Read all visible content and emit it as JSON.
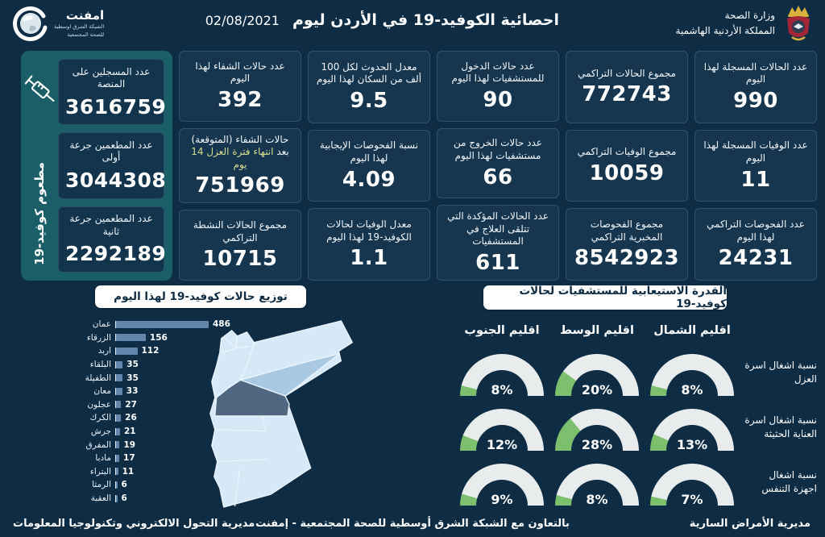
{
  "header": {
    "title": "احصائية الكوفيد-19 في الأردن ليوم",
    "date": "02/08/2021",
    "ministry": {
      "line1": "وزارة الصحة",
      "line2": "المملكة الأردنية الهاشمية"
    },
    "emphnet": {
      "name": "امفنت",
      "sub1": "الشبكة الشرق اوسطية",
      "sub2": "للصحة المجتمعية"
    }
  },
  "cards": {
    "registered_today": {
      "label": "عدد الحالات المسجلة لهذا اليوم",
      "value": "990"
    },
    "deaths_today": {
      "label": "عدد الوفيات المسجلة لهذا اليوم",
      "value": "11"
    },
    "tests_today": {
      "label": "عدد الفحوصات التراكمي لهذا اليوم",
      "value": "24231"
    },
    "total_cases": {
      "label": "مجموع الحالات التراكمي",
      "value": "772743"
    },
    "total_deaths": {
      "label": "مجموع الوفيات التراكمي",
      "value": "10059"
    },
    "total_tests": {
      "label": "مجموع الفحوصات المخبرية التراكمي",
      "value": "8542923"
    },
    "admissions_today": {
      "label": "عدد حالات الدخول للمستشفيات لهذا اليوم",
      "value": "90"
    },
    "discharges_today": {
      "label": "عدد حالات الخروج من مستشفيات لهذا اليوم",
      "value": "66"
    },
    "hospitalized": {
      "label": "عدد الحالات المؤكدة التي تتلقى العلاج في المستشفيات",
      "value": "611"
    },
    "incidence_rate": {
      "label": "معدل الحدوث لكل 100 ألف من السكان لهذا اليوم",
      "value": "9.5"
    },
    "positivity_rate": {
      "label": "نسبة الفحوصات الإيجابية لهذا اليوم",
      "value": "4.09"
    },
    "fatality_rate": {
      "label": "معدل الوفيات لحالات الكوفيد-19 لهذا اليوم",
      "value": "1.1"
    },
    "recovered_today": {
      "label": "عدد حالات الشفاء لهذا اليوم",
      "value": "392"
    },
    "expected_recoveries": {
      "label1": "حالات الشفاء (المتوقعة) بعد",
      "label2": "انتهاء فترة العزل 14 يوم",
      "value": "751969"
    },
    "active_cases": {
      "label": "مجموع الحالات النشطة التراكمي",
      "value": "10715"
    }
  },
  "vaccine_panel": {
    "vertical_label": "مطعوم كوفيد-19",
    "registered": {
      "label": "عدد المسجلين على المنصة",
      "value": "3616759"
    },
    "first_dose": {
      "label": "عدد المطعمين جرعة أولى",
      "value": "3044308"
    },
    "second_dose": {
      "label": "عدد المطعمين جرعة ثانية",
      "value": "2292189"
    }
  },
  "sections": {
    "distribution_title": "توزيع حالات كوفيد-19 لهذا اليوم",
    "capacity_title": "القدرة الاستيعابية للمستشفيات لحالات كوفيد-19"
  },
  "chart_data": [
    {
      "type": "bar",
      "title": "توزيع حالات كوفيد-19 لهذا اليوم",
      "orientation": "horizontal",
      "categories": [
        "عمان",
        "الزرقاء",
        "اربد",
        "البلقاء",
        "الطفيلة",
        "معان",
        "عجلون",
        "الكرك",
        "جرش",
        "المفرق",
        "مادبا",
        "البتراء",
        "الرمثا",
        "العقبة"
      ],
      "values": [
        486,
        156,
        112,
        35,
        35,
        33,
        27,
        26,
        21,
        19,
        17,
        11,
        6,
        6
      ],
      "bar_color": "#6387ac",
      "value_labels": true
    },
    {
      "type": "gauge",
      "title": "القدرة الاستيعابية للمستشفيات لحالات كوفيد-19",
      "categories": [
        "اقليم الشمال",
        "اقليم الوسط",
        "اقليم الجنوب"
      ],
      "series": [
        {
          "name": "نسبة اشغال اسرة العزل",
          "values": [
            8,
            20,
            8
          ]
        },
        {
          "name": "نسبة اشغال اسرة العناية الحثيثة",
          "values": [
            13,
            28,
            12
          ]
        },
        {
          "name": "نسبة اشغال اجهزة التنفس",
          "values": [
            7,
            8,
            9
          ]
        }
      ],
      "unit": "%",
      "max": 100,
      "track_color": "#e9ecec",
      "fill_color": "#7cbf6c"
    }
  ],
  "footer": {
    "right": "مديرية الأمراض السارية",
    "center": "بالتعاون مع الشبكة الشرق أوسطية للصحة المجتمعية - إمفنت",
    "left": "مديرية التحول الالكتروني وتكنولوجيا المعلومات"
  }
}
